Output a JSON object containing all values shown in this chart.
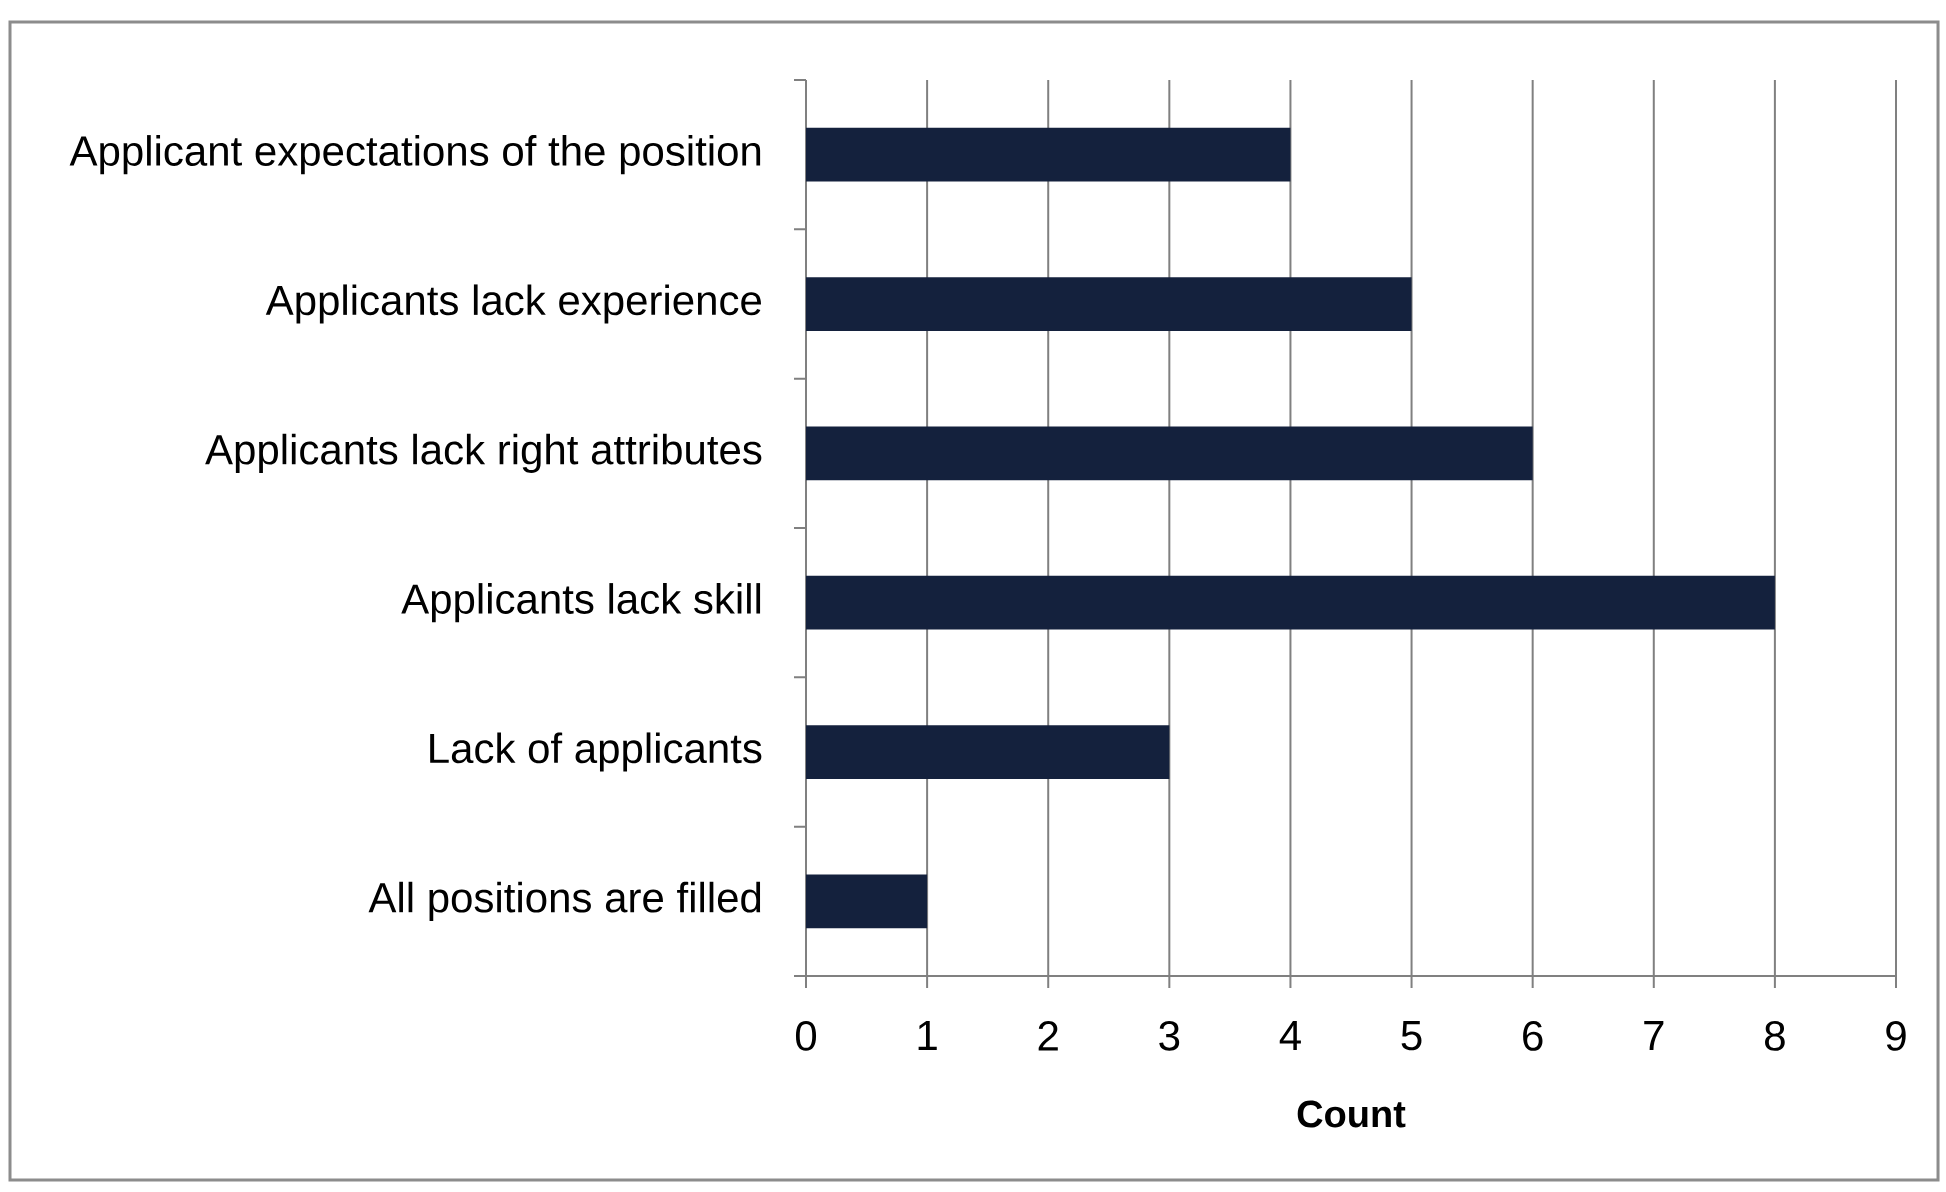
{
  "chart_data": {
    "type": "bar",
    "orientation": "horizontal",
    "categories": [
      "Applicant expectations of the position",
      "Applicants lack experience",
      "Applicants lack right attributes",
      "Applicants lack skill",
      "Lack of applicants",
      "All positions are filled"
    ],
    "values": [
      4,
      5,
      6,
      8,
      3,
      1
    ],
    "color": "#14213d",
    "xlim": [
      0,
      9
    ],
    "xticks": [
      0,
      1,
      2,
      3,
      4,
      5,
      6,
      7,
      8,
      9
    ],
    "xlabel": "Count",
    "grid": "x"
  }
}
